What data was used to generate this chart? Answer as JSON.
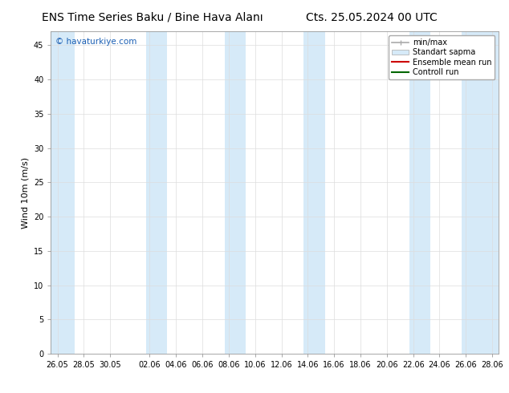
{
  "title_left": "ENS Time Series Baku / Bine Hava Alanı",
  "title_right": "Cts. 25.05.2024 00 UTC",
  "ylabel": "Wind 10m (m/s)",
  "ylim": [
    0,
    47
  ],
  "yticks": [
    0,
    5,
    10,
    15,
    20,
    25,
    30,
    35,
    40,
    45
  ],
  "xtick_labels": [
    "26.05",
    "28.05",
    "30.05",
    "02.06",
    "04.06",
    "06.06",
    "08.06",
    "10.06",
    "12.06",
    "14.06",
    "16.06",
    "18.06",
    "20.06",
    "22.06",
    "24.06",
    "26.06",
    "28.06"
  ],
  "xtick_positions": [
    0,
    2,
    4,
    7,
    9,
    11,
    13,
    15,
    17,
    19,
    21,
    23,
    25,
    27,
    29,
    31,
    33
  ],
  "xlim": [
    -0.5,
    33.5
  ],
  "bg_color": "#ffffff",
  "plot_bg_color": "#ffffff",
  "band_color": "#d6eaf8",
  "band_positions": [
    [
      -0.5,
      1.3
    ],
    [
      6.7,
      8.3
    ],
    [
      12.7,
      14.3
    ],
    [
      18.7,
      20.3
    ],
    [
      26.7,
      28.3
    ],
    [
      30.7,
      33.5
    ]
  ],
  "watermark": "© havaturkiye.com",
  "watermark_color": "#1a5fb4",
  "title_fontsize": 10,
  "tick_fontsize": 7,
  "ylabel_fontsize": 8,
  "legend_fontsize": 7,
  "minmax_color": "#aaaaaa",
  "band_legend_color": "#d6eaf8",
  "ens_color": "#cc0000",
  "ctrl_color": "#006600"
}
